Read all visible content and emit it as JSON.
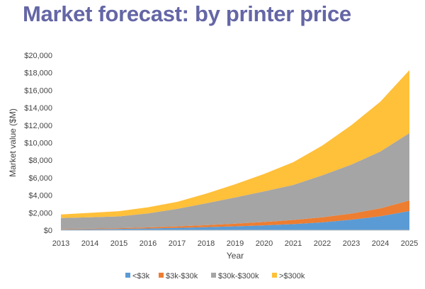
{
  "page": {
    "title": "Market forecast: by printer price"
  },
  "chart_data": {
    "type": "area",
    "stacked": true,
    "title": "",
    "xlabel": "Year",
    "ylabel": "Market value ($M)",
    "x": [
      2013,
      2014,
      2015,
      2016,
      2017,
      2018,
      2019,
      2020,
      2021,
      2022,
      2023,
      2024,
      2025
    ],
    "x_tick_labels": [
      "2013",
      "2014",
      "2015",
      "2016",
      "2017",
      "2018",
      "2019",
      "2020",
      "2021",
      "2022",
      "2023",
      "2024",
      "2025"
    ],
    "ylim": [
      0,
      20000
    ],
    "y_ticks": [
      0,
      2000,
      4000,
      6000,
      8000,
      10000,
      12000,
      14000,
      16000,
      18000,
      20000
    ],
    "y_tick_labels": [
      "$0",
      "$2,000",
      "$4,000",
      "$6,000",
      "$8,000",
      "$10,000",
      "$12,000",
      "$14,000",
      "$16,000",
      "$18,000",
      "$20,000"
    ],
    "grid": false,
    "legend_position": "bottom",
    "series": [
      {
        "name": "<$3k",
        "color": "#5b9bd5",
        "values": [
          100,
          120,
          150,
          200,
          270,
          350,
          450,
          560,
          700,
          900,
          1200,
          1600,
          2200
        ]
      },
      {
        "name": "$3k-$30k",
        "color": "#ed7d31",
        "values": [
          50,
          60,
          80,
          120,
          170,
          230,
          300,
          380,
          470,
          580,
          700,
          900,
          1200
        ]
      },
      {
        "name": "$30k-$300k",
        "color": "#a5a5a5",
        "values": [
          1250,
          1300,
          1350,
          1600,
          2000,
          2500,
          3000,
          3500,
          4000,
          4800,
          5600,
          6500,
          7700
        ]
      },
      {
        "name": ">$300k",
        "color": "#ffc03a",
        "values": [
          400,
          500,
          600,
          700,
          800,
          1100,
          1500,
          2000,
          2600,
          3400,
          4500,
          5700,
          7200
        ]
      }
    ]
  }
}
